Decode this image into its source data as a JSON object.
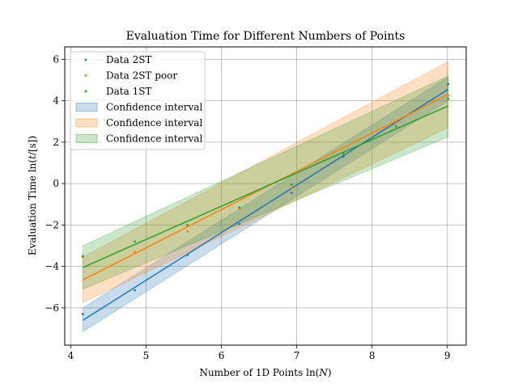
{
  "chart_data": {
    "type": "scatter",
    "title": "Evaluation Time for Different Numbers of Points",
    "xlabel": "Number of 1D Points ln(N)",
    "ylabel": "Evaluation Time ln(t/[s])",
    "xlim": [
      3.92,
      9.25
    ],
    "ylim": [
      -7.8,
      6.6
    ],
    "xticks": [
      4,
      5,
      6,
      7,
      8,
      9
    ],
    "yticks": [
      -6,
      -4,
      -2,
      0,
      2,
      4,
      6
    ],
    "xtick_labels": [
      "4",
      "5",
      "6",
      "7",
      "8",
      "9"
    ],
    "ytick_labels": [
      "−6",
      "−4",
      "−2",
      "0",
      "2",
      "4",
      "6"
    ],
    "grid": true,
    "legend_position": "top-left",
    "series": [
      {
        "name": "Data 2ST",
        "color": "#1f77b4",
        "x": [
          4.16,
          4.85,
          5.55,
          6.24,
          6.93,
          7.62,
          8.32,
          9.01
        ],
        "y": [
          -6.3,
          -5.15,
          -3.45,
          -1.95,
          -0.45,
          1.3,
          2.95,
          4.8
        ],
        "fit": {
          "x": [
            4.16,
            9.01
          ],
          "y": [
            -6.6,
            4.55
          ]
        },
        "ci": {
          "lower": [
            -7.15,
            4.0
          ],
          "upper": [
            -6.0,
            5.15
          ]
        }
      },
      {
        "name": "Data 2ST poor",
        "color": "#ff7f0e",
        "x": [
          4.16,
          4.85,
          5.55,
          6.24,
          6.93,
          7.62,
          8.32,
          9.01
        ],
        "y": [
          -3.55,
          -3.3,
          -2.3,
          -1.2,
          -0.2,
          1.45,
          2.95,
          4.25
        ],
        "fit": {
          "x": [
            4.16,
            9.01
          ],
          "y": [
            -4.65,
            4.3
          ]
        },
        "ci": {
          "lower": [
            -5.75,
            2.7
          ],
          "upper": [
            -3.55,
            5.9
          ]
        }
      },
      {
        "name": "Data 1ST",
        "color": "#2ca02c",
        "x": [
          4.16,
          4.85,
          5.55,
          6.24,
          6.93,
          7.62,
          8.32,
          9.01
        ],
        "y": [
          -3.5,
          -2.8,
          -2.0,
          -1.15,
          -0.05,
          1.45,
          2.75,
          4.1
        ],
        "fit": {
          "x": [
            4.16,
            9.01
          ],
          "y": [
            -4.05,
            3.75
          ]
        },
        "ci": {
          "lower": [
            -5.1,
            2.25
          ],
          "upper": [
            -3.0,
            5.2
          ]
        }
      }
    ],
    "legend": [
      {
        "label": "Data 2ST",
        "kind": "marker",
        "color": "#1f77b4"
      },
      {
        "label": "Data 2ST poor",
        "kind": "marker",
        "color": "#ff7f0e"
      },
      {
        "label": "Data 1ST",
        "kind": "marker",
        "color": "#2ca02c"
      },
      {
        "label": "Confidence interval",
        "kind": "patch",
        "color": "#1f77b4"
      },
      {
        "label": "Confidence interval",
        "kind": "patch",
        "color": "#ff7f0e"
      },
      {
        "label": "Confidence interval",
        "kind": "patch",
        "color": "#2ca02c"
      }
    ]
  }
}
